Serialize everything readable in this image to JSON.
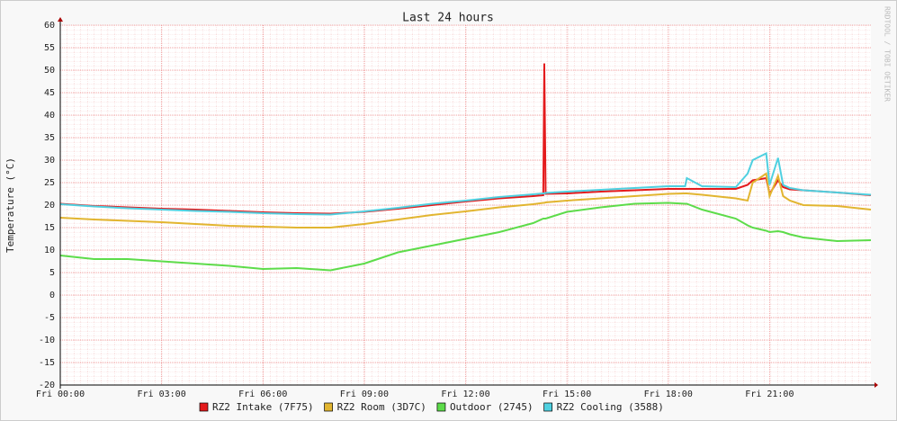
{
  "chart_data": {
    "type": "line",
    "title": "Last 24 hours",
    "y_label": "Temperature (°C)",
    "watermark": "RRDTOOL / TOBI OETIKER",
    "x": [
      0,
      1,
      2,
      3,
      4,
      5,
      6,
      7,
      8,
      9,
      10,
      11,
      12,
      13,
      14,
      14.3,
      14.33,
      14.37,
      15,
      16,
      17,
      18,
      18.5,
      18.55,
      19,
      20,
      20.35,
      20.5,
      20.9,
      21.0,
      21.25,
      21.4,
      21.6,
      22,
      23,
      24
    ],
    "xlim": [
      0,
      24
    ],
    "xticks": [
      {
        "value": 0,
        "label": "Fri 00:00"
      },
      {
        "value": 3,
        "label": "Fri 03:00"
      },
      {
        "value": 6,
        "label": "Fri 06:00"
      },
      {
        "value": 9,
        "label": "Fri 09:00"
      },
      {
        "value": 12,
        "label": "Fri 12:00"
      },
      {
        "value": 15,
        "label": "Fri 15:00"
      },
      {
        "value": 18,
        "label": "Fri 18:00"
      },
      {
        "value": 21,
        "label": "Fri 21:00"
      }
    ],
    "ylim": [
      -20,
      60
    ],
    "yticks": [
      -20,
      -15,
      -10,
      -5,
      0,
      5,
      10,
      15,
      20,
      25,
      30,
      35,
      40,
      45,
      50,
      55,
      60
    ],
    "grid": true,
    "series": [
      {
        "name": "RZ2 Intake (7F75)",
        "color": "#e41a1c",
        "values": [
          20.3,
          19.8,
          19.5,
          19.2,
          19,
          18.7,
          18.4,
          18.2,
          18.1,
          18.5,
          19.2,
          20,
          20.8,
          21.5,
          22,
          22.2,
          51.5,
          22.5,
          22.6,
          23,
          23.3,
          23.6,
          23.6,
          23.6,
          23.6,
          23.6,
          24.5,
          25.5,
          26,
          22.5,
          25.5,
          24,
          23.5,
          23.3,
          22.8,
          22.2
        ]
      },
      {
        "name": "RZ2 Room (3D7C)",
        "color": "#e2b530",
        "values": [
          17.2,
          16.8,
          16.5,
          16.2,
          15.8,
          15.4,
          15.2,
          15,
          15,
          15.8,
          16.8,
          17.8,
          18.6,
          19.5,
          20.2,
          20.5,
          20.5,
          20.6,
          21,
          21.5,
          22,
          22.5,
          22.6,
          22.6,
          22.3,
          21.5,
          21,
          25,
          27,
          22,
          26.5,
          22,
          21,
          20,
          19.8,
          19
        ]
      },
      {
        "name": "Outdoor (2745)",
        "color": "#5ddc4a",
        "values": [
          8.8,
          8,
          8,
          7.5,
          7,
          6.5,
          5.8,
          6,
          5.5,
          7,
          9.5,
          11,
          12.5,
          14,
          16,
          17,
          17,
          17,
          18.5,
          19.5,
          20.3,
          20.5,
          20.3,
          20.3,
          19,
          17,
          15.5,
          15,
          14.3,
          14,
          14.2,
          14,
          13.5,
          12.8,
          12,
          12.2
        ]
      },
      {
        "name": "RZ2 Cooling (3588)",
        "color": "#4fd0e0",
        "values": [
          20.2,
          19.7,
          19.3,
          19,
          18.7,
          18.5,
          18.2,
          18,
          17.9,
          18.6,
          19.4,
          20.3,
          21,
          21.8,
          22.4,
          22.6,
          22.6,
          22.7,
          23,
          23.4,
          23.8,
          24.2,
          24.2,
          26,
          24.2,
          24,
          27,
          30,
          31.5,
          24.5,
          30.5,
          24.5,
          23.8,
          23.3,
          22.8,
          22.3
        ]
      }
    ]
  }
}
